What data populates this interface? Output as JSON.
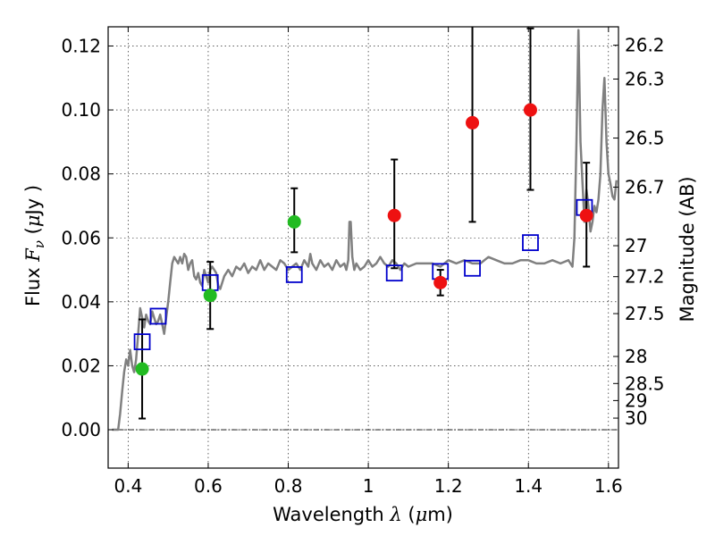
{
  "chart_data": {
    "type": "scatter",
    "xlabel": "Wavelength",
    "xlabel_symbol": "λ",
    "xlabel_unit_open": " (",
    "xlabel_unit_mu": "μ",
    "xlabel_unit_rest": "m)",
    "ylabel": "Flux",
    "ylabel_symbol": "F",
    "ylabel_sub": "ν",
    "ylabel_unit_open": " (",
    "ylabel_unit_mu": "μ",
    "ylabel_unit_rest": "Jy )",
    "y2label": "Magnitude (AB)",
    "xlim": [
      0.35,
      1.625
    ],
    "ylim": [
      -0.012,
      0.126
    ],
    "grid": true,
    "x_ticks": [
      {
        "v": 0.4,
        "label": "0.4"
      },
      {
        "v": 0.6,
        "label": "0.6"
      },
      {
        "v": 0.8,
        "label": "0.8"
      },
      {
        "v": 1.0,
        "label": "1"
      },
      {
        "v": 1.2,
        "label": "1.2"
      },
      {
        "v": 1.4,
        "label": "1.4"
      },
      {
        "v": 1.6,
        "label": "1.6"
      }
    ],
    "y_ticks": [
      {
        "v": 0.0,
        "label": "0.00"
      },
      {
        "v": 0.02,
        "label": "0.02"
      },
      {
        "v": 0.04,
        "label": "0.04"
      },
      {
        "v": 0.06,
        "label": "0.06"
      },
      {
        "v": 0.08,
        "label": "0.08"
      },
      {
        "v": 0.1,
        "label": "0.10"
      },
      {
        "v": 0.12,
        "label": "0.12"
      }
    ],
    "mag_ticks": [
      {
        "mag": 26.2,
        "label": "26.2"
      },
      {
        "mag": 26.3,
        "label": "26.3"
      },
      {
        "mag": 26.5,
        "label": "26.5"
      },
      {
        "mag": 26.7,
        "label": "26.7"
      },
      {
        "mag": 27,
        "label": "27"
      },
      {
        "mag": 27.2,
        "label": "27.2"
      },
      {
        "mag": 27.5,
        "label": "27.5"
      },
      {
        "mag": 28,
        "label": "28"
      },
      {
        "mag": 28.5,
        "label": "28.5"
      },
      {
        "mag": 29,
        "label": "29"
      },
      {
        "mag": 30,
        "label": "30"
      }
    ],
    "series": [
      {
        "name": "model-spectrum",
        "kind": "line",
        "color": "#808080",
        "x": [
          0.36,
          0.375,
          0.38,
          0.385,
          0.39,
          0.395,
          0.4,
          0.405,
          0.41,
          0.415,
          0.42,
          0.425,
          0.43,
          0.435,
          0.44,
          0.445,
          0.45,
          0.455,
          0.46,
          0.465,
          0.47,
          0.475,
          0.48,
          0.485,
          0.49,
          0.495,
          0.5,
          0.505,
          0.51,
          0.515,
          0.52,
          0.525,
          0.53,
          0.535,
          0.54,
          0.545,
          0.55,
          0.555,
          0.56,
          0.565,
          0.57,
          0.575,
          0.58,
          0.585,
          0.59,
          0.595,
          0.6,
          0.605,
          0.61,
          0.615,
          0.62,
          0.625,
          0.63,
          0.64,
          0.65,
          0.66,
          0.67,
          0.68,
          0.69,
          0.7,
          0.71,
          0.72,
          0.73,
          0.74,
          0.75,
          0.76,
          0.77,
          0.78,
          0.79,
          0.8,
          0.81,
          0.82,
          0.83,
          0.84,
          0.85,
          0.855,
          0.86,
          0.87,
          0.88,
          0.89,
          0.9,
          0.91,
          0.92,
          0.93,
          0.94,
          0.945,
          0.95,
          0.953,
          0.956,
          0.96,
          0.965,
          0.97,
          0.98,
          0.99,
          1.0,
          1.01,
          1.02,
          1.03,
          1.04,
          1.05,
          1.06,
          1.07,
          1.08,
          1.09,
          1.1,
          1.12,
          1.14,
          1.16,
          1.18,
          1.2,
          1.22,
          1.24,
          1.26,
          1.28,
          1.3,
          1.32,
          1.34,
          1.36,
          1.38,
          1.4,
          1.42,
          1.44,
          1.46,
          1.48,
          1.5,
          1.51,
          1.515,
          1.52,
          1.525,
          1.53,
          1.54,
          1.545,
          1.55,
          1.555,
          1.56,
          1.565,
          1.57,
          1.575,
          1.58,
          1.585,
          1.59,
          1.595,
          1.6,
          1.605,
          1.61,
          1.615,
          1.62
        ],
        "y": [
          0.0,
          0.0,
          0.005,
          0.012,
          0.018,
          0.022,
          0.02,
          0.025,
          0.02,
          0.018,
          0.022,
          0.03,
          0.038,
          0.035,
          0.032,
          0.036,
          0.034,
          0.033,
          0.037,
          0.035,
          0.033,
          0.034,
          0.036,
          0.033,
          0.03,
          0.035,
          0.04,
          0.046,
          0.052,
          0.054,
          0.053,
          0.052,
          0.054,
          0.052,
          0.055,
          0.054,
          0.05,
          0.052,
          0.053,
          0.048,
          0.047,
          0.049,
          0.046,
          0.045,
          0.05,
          0.048,
          0.046,
          0.05,
          0.051,
          0.05,
          0.049,
          0.045,
          0.044,
          0.048,
          0.05,
          0.048,
          0.051,
          0.05,
          0.052,
          0.049,
          0.051,
          0.05,
          0.053,
          0.05,
          0.052,
          0.051,
          0.05,
          0.053,
          0.052,
          0.05,
          0.051,
          0.052,
          0.05,
          0.053,
          0.051,
          0.055,
          0.052,
          0.05,
          0.053,
          0.051,
          0.052,
          0.05,
          0.053,
          0.051,
          0.052,
          0.05,
          0.053,
          0.065,
          0.065,
          0.054,
          0.05,
          0.052,
          0.05,
          0.051,
          0.053,
          0.051,
          0.052,
          0.054,
          0.052,
          0.051,
          0.053,
          0.052,
          0.05,
          0.052,
          0.051,
          0.052,
          0.052,
          0.052,
          0.051,
          0.053,
          0.052,
          0.053,
          0.052,
          0.052,
          0.054,
          0.053,
          0.052,
          0.052,
          0.053,
          0.053,
          0.052,
          0.052,
          0.053,
          0.052,
          0.053,
          0.051,
          0.06,
          0.09,
          0.125,
          0.09,
          0.065,
          0.075,
          0.07,
          0.062,
          0.065,
          0.07,
          0.068,
          0.072,
          0.08,
          0.1,
          0.11,
          0.09,
          0.08,
          0.077,
          0.073,
          0.072,
          0.078
        ]
      },
      {
        "name": "model-photometry",
        "kind": "open-square",
        "color": "#0000cc",
        "x": [
          0.435,
          0.475,
          0.605,
          0.815,
          1.065,
          1.18,
          1.26,
          1.405,
          1.54
        ],
        "y": [
          0.0275,
          0.0355,
          0.046,
          0.0485,
          0.049,
          0.0495,
          0.0505,
          0.0585,
          0.0695
        ]
      },
      {
        "name": "green-measurements",
        "kind": "filled-circle",
        "color": "#22bb22",
        "x": [
          0.435,
          0.605,
          0.815
        ],
        "y": [
          0.019,
          0.042,
          0.065
        ],
        "err_low": [
          0.0155,
          0.0105,
          0.0095
        ],
        "err_high": [
          0.0155,
          0.0105,
          0.0105
        ]
      },
      {
        "name": "red-measurements",
        "kind": "filled-circle",
        "color": "#ee1111",
        "x": [
          1.065,
          1.18,
          1.26,
          1.405,
          1.545
        ],
        "y": [
          0.067,
          0.046,
          0.096,
          0.1,
          0.067
        ],
        "err_low": [
          0.0165,
          0.004,
          0.031,
          0.025,
          0.016
        ],
        "err_high": [
          0.0175,
          0.004,
          0.035,
          0.0255,
          0.0165
        ]
      }
    ]
  }
}
